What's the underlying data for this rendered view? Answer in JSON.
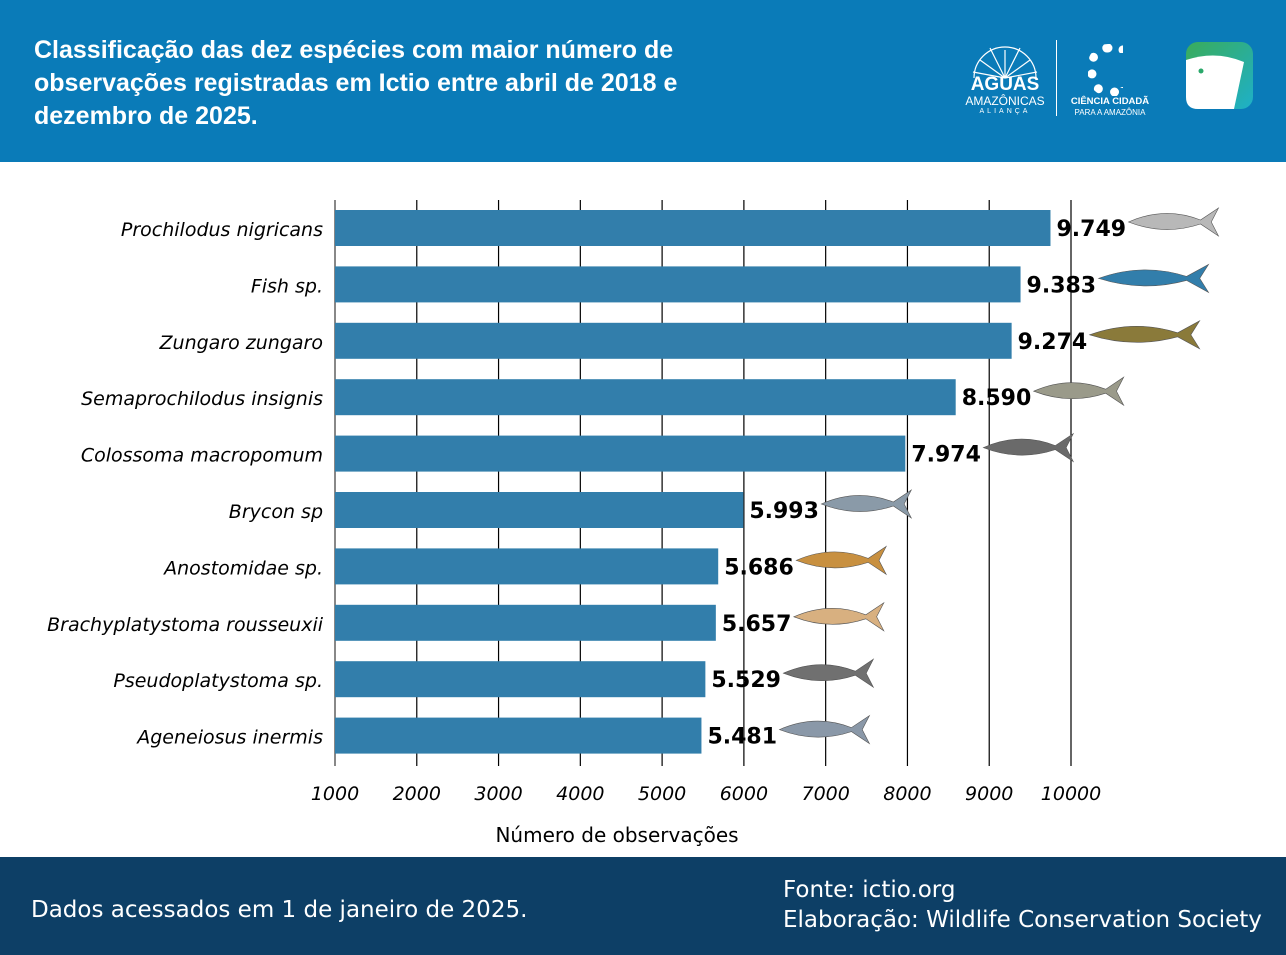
{
  "header": {
    "title": "Classificação das dez espécies com maior número de observações registradas em Ictio entre abril de 2018 e dezembro de 2025.",
    "logos": {
      "aguas": "AGUAS",
      "amazonicas": "AMAZÔNICAS",
      "alianca": "ALIANÇA",
      "ciencia": "CIÊNCIA CIDADÃ",
      "para": "PARA A AMAZÔNIA"
    }
  },
  "chart_data": {
    "type": "bar",
    "orientation": "horizontal",
    "categories": [
      "Prochilodus nigricans",
      "Fish sp.",
      "Zungaro zungaro",
      "Semaprochilodus insignis",
      "Colossoma macropomum",
      "Brycon sp",
      "Anostomidae sp.",
      "Brachyplatystoma rousseuxii",
      "Pseudoplatystoma sp.",
      "Ageneiosus inermis"
    ],
    "values": [
      9749,
      9383,
      9274,
      8590,
      7974,
      5993,
      5686,
      5657,
      5529,
      5481
    ],
    "data_labels": [
      "9.749",
      "9.383",
      "9.274",
      "8.590",
      "7.974",
      "5.993",
      "5.686",
      "5.657",
      "5.529",
      "5.481"
    ],
    "xlabel": "Número de observações",
    "xlim": [
      1000,
      10000
    ],
    "xticks": [
      1000,
      2000,
      3000,
      4000,
      5000,
      6000,
      7000,
      8000,
      9000,
      10000
    ],
    "grid": "vertical",
    "bar_color": "#327eab"
  },
  "footer": {
    "accessed": "Dados acessados em 1 de janeiro de 2025.",
    "source": "Fonte: ictio.org",
    "made_by": "Elaboração: Wildlife Conservation Society"
  }
}
